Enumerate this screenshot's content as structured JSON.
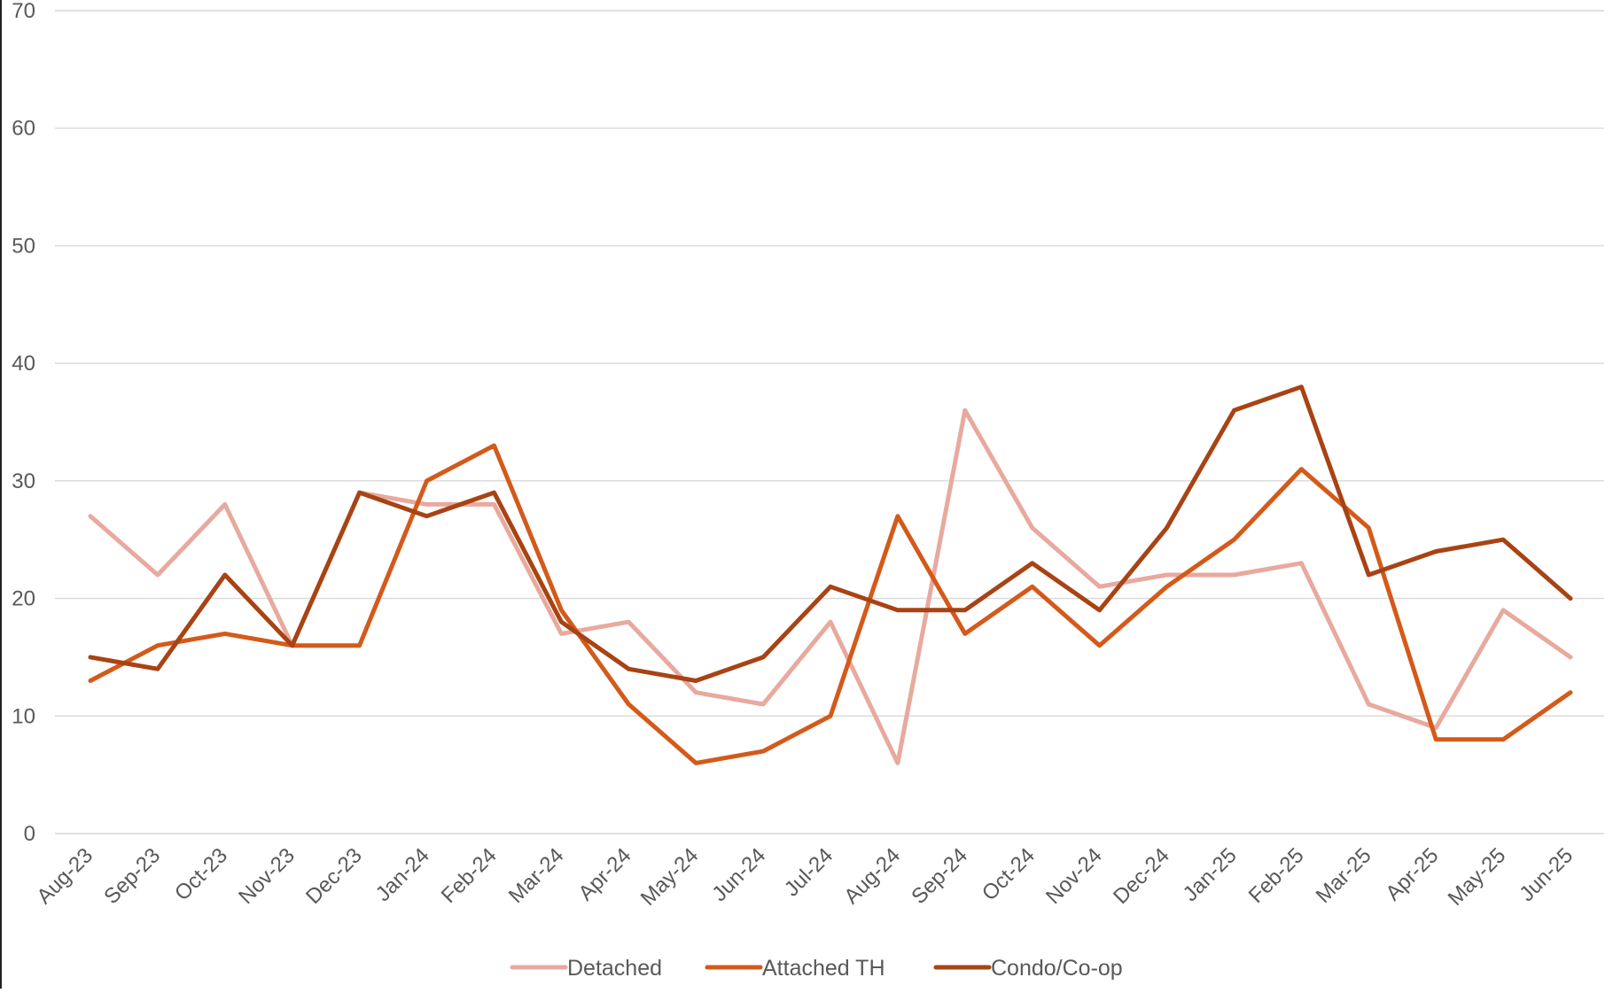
{
  "chart_data": {
    "type": "line",
    "title": "",
    "xlabel": "",
    "ylabel": "",
    "ylim": [
      0,
      70
    ],
    "yticks": [
      0,
      10,
      20,
      30,
      40,
      50,
      60,
      70
    ],
    "grid": true,
    "legend_position": "bottom-center",
    "categories": [
      "Aug-23",
      "Sep-23",
      "Oct-23",
      "Nov-23",
      "Dec-23",
      "Jan-24",
      "Feb-24",
      "Mar-24",
      "Apr-24",
      "May-24",
      "Jun-24",
      "Jul-24",
      "Aug-24",
      "Sep-24",
      "Oct-24",
      "Nov-24",
      "Dec-24",
      "Jan-25",
      "Feb-25",
      "Mar-25",
      "Apr-25",
      "May-25",
      "Jun-25"
    ],
    "series": [
      {
        "name": "Detached",
        "color": "#e8a99e",
        "values": [
          27,
          22,
          28,
          16,
          29,
          28,
          28,
          17,
          18,
          12,
          11,
          18,
          6,
          36,
          26,
          21,
          22,
          22,
          23,
          11,
          9,
          19,
          15
        ]
      },
      {
        "name": "Attached TH",
        "color": "#d45a1a",
        "values": [
          13,
          16,
          17,
          16,
          16,
          30,
          33,
          19,
          11,
          6,
          7,
          10,
          27,
          17,
          21,
          16,
          21,
          25,
          31,
          26,
          8,
          8,
          12
        ]
      },
      {
        "name": "Condo/Co-op",
        "color": "#a84314",
        "values": [
          15,
          14,
          22,
          16,
          29,
          27,
          29,
          18,
          14,
          13,
          15,
          21,
          19,
          19,
          23,
          19,
          26,
          36,
          38,
          22,
          24,
          25,
          20
        ]
      }
    ]
  }
}
